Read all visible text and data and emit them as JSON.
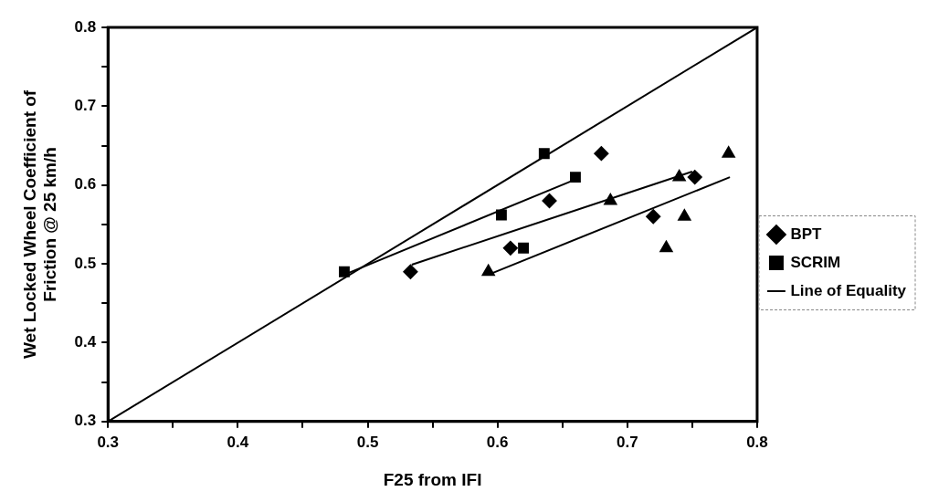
{
  "chart_data": {
    "type": "scatter",
    "xlabel": "F25 from IFI",
    "ylabel": "Wet Locked Wheel Coefficient of\nFriction @ 25 km/h",
    "xlim": [
      0.3,
      0.8
    ],
    "ylim": [
      0.3,
      0.8
    ],
    "xticks": [
      0.3,
      {
        "value": 0.35,
        "label": null
      },
      0.4,
      {
        "value": 0.45,
        "label": null
      },
      0.5,
      {
        "value": 0.55,
        "label": null
      },
      0.6,
      {
        "value": 0.65,
        "label": null
      },
      0.7,
      {
        "value": 0.75,
        "label": null
      },
      0.8
    ],
    "yticks": [
      0.3,
      {
        "value": 0.35,
        "label": null
      },
      0.4,
      {
        "value": 0.45,
        "label": null
      },
      0.5,
      {
        "value": 0.55,
        "label": null
      },
      0.6,
      {
        "value": 0.65,
        "label": null
      },
      0.7,
      {
        "value": 0.75,
        "label": null
      },
      0.8
    ],
    "grid": false,
    "legend": "right",
    "series": [
      {
        "name": "BPT",
        "marker": "diamond",
        "color": "#000000",
        "x": [
          0.533,
          0.61,
          0.64,
          0.68,
          0.72,
          0.752
        ],
        "values": [
          0.49,
          0.52,
          0.58,
          0.64,
          0.56,
          0.61
        ]
      },
      {
        "name": "SCRIM",
        "marker": "square",
        "color": "#000000",
        "x": [
          0.482,
          0.603,
          0.62,
          0.636,
          0.66
        ],
        "values": [
          0.49,
          0.562,
          0.52,
          0.64,
          0.61
        ]
      },
      {
        "marker": "triangle",
        "color": "#000000",
        "x": [
          0.593,
          0.687,
          0.73,
          0.74,
          0.744,
          0.778
        ],
        "values": [
          0.49,
          0.58,
          0.52,
          0.61,
          0.56,
          0.64
        ]
      },
      {
        "name": "Line of Equality",
        "type": "line",
        "marker": "none",
        "line_style": "solid",
        "color": "#000000",
        "x": [
          0.3,
          0.8
        ],
        "values": [
          0.3,
          0.8
        ]
      },
      {
        "type": "line",
        "marker": "none",
        "line_style": "solid",
        "color": "#000000",
        "x": [
          0.534,
          0.75
        ],
        "values": [
          0.499,
          0.617
        ]
      },
      {
        "type": "line",
        "marker": "none",
        "line_style": "solid",
        "color": "#000000",
        "x": [
          0.483,
          0.66
        ],
        "values": [
          0.487,
          0.607
        ]
      },
      {
        "type": "line",
        "marker": "none",
        "line_style": "solid",
        "color": "#000000",
        "x": [
          0.594,
          0.779
        ],
        "values": [
          0.487,
          0.61
        ]
      }
    ]
  }
}
